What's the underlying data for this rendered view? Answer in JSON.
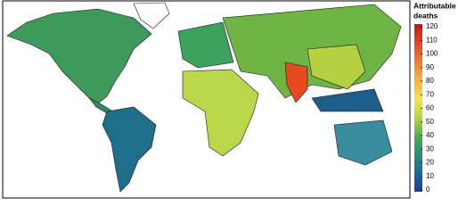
{
  "legend": {
    "title_lines": [
      "Attributable",
      "deaths"
    ],
    "ticks": [
      0,
      10,
      20,
      30,
      40,
      50,
      60,
      70,
      80,
      90,
      100,
      110,
      120
    ]
  }
}
